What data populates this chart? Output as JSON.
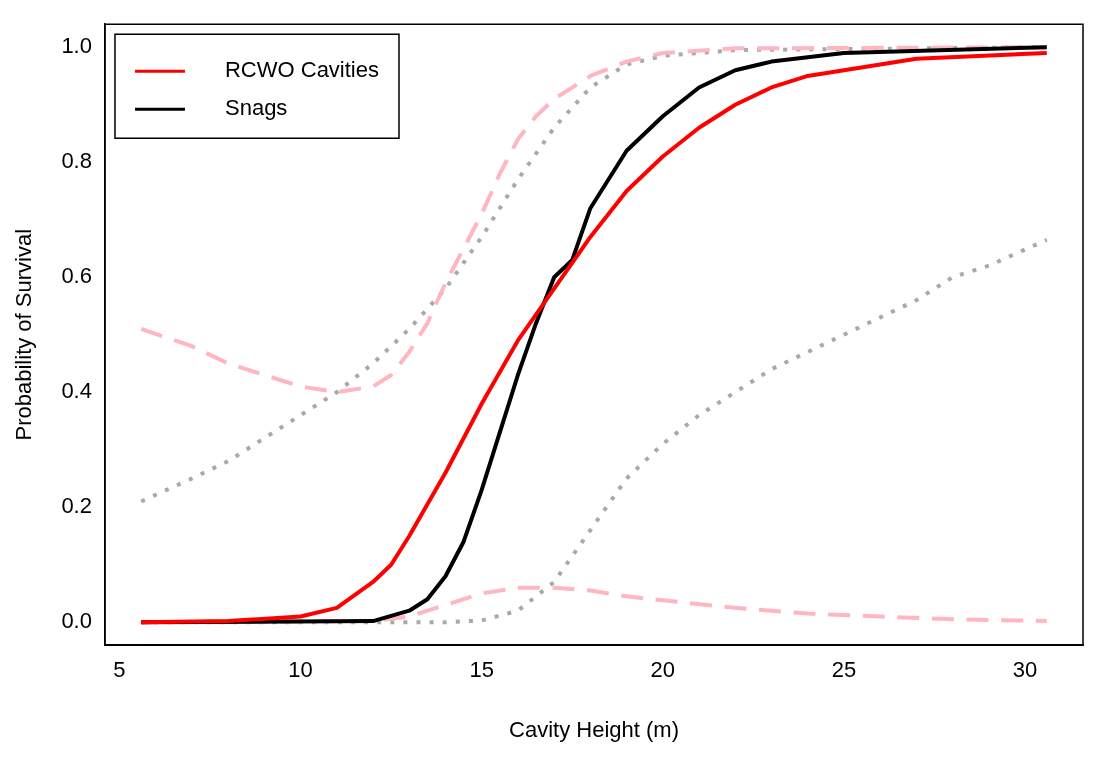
{
  "chart_data": {
    "type": "line",
    "xlabel": "Cavity Height (m)",
    "ylabel": "Probability of Survival",
    "xlim": [
      4.6,
      31.6
    ],
    "ylim": [
      -0.04,
      1.04
    ],
    "xticks": [
      5,
      10,
      15,
      20,
      25,
      30
    ],
    "yticks": [
      {
        "value": 0,
        "label": "0.0"
      },
      0.2,
      0.4,
      0.6,
      0.8,
      {
        "value": 1,
        "label": "1.0"
      }
    ],
    "grid": false,
    "legend": "top left",
    "marker": "none",
    "series": [
      {
        "name": "RCWO Cavities",
        "color": "#ff0000",
        "line_style": "solid",
        "x": [
          5.6,
          8,
          10,
          11,
          12,
          12.5,
          13,
          14,
          15,
          16,
          17,
          18,
          19,
          20,
          21,
          22,
          23,
          24,
          25,
          27,
          30.6
        ],
        "values": [
          0,
          0.002,
          0.01,
          0.025,
          0.07,
          0.1,
          0.15,
          0.26,
          0.38,
          0.49,
          0.58,
          0.67,
          0.75,
          0.81,
          0.86,
          0.9,
          0.93,
          0.95,
          0.96,
          0.98,
          0.99
        ]
      },
      {
        "name": "Snags",
        "color": "#000000",
        "line_style": "solid",
        "x": [
          5.6,
          12,
          13,
          13.5,
          14,
          14.5,
          15,
          15.5,
          16,
          16.5,
          17,
          17.5,
          18,
          19,
          20,
          21,
          22,
          23,
          25,
          30.6
        ],
        "values": [
          0,
          0.002,
          0.02,
          0.04,
          0.08,
          0.14,
          0.23,
          0.33,
          0.43,
          0.52,
          0.6,
          0.63,
          0.72,
          0.82,
          0.88,
          0.93,
          0.96,
          0.975,
          0.99,
          1
        ]
      },
      {
        "color": "#ffb6c1",
        "line_style": "dashed",
        "x": [
          5.6,
          7,
          8,
          9,
          10,
          11,
          12,
          12.5,
          13,
          13.5,
          14,
          14.5,
          15,
          15.5,
          16,
          16.5,
          17,
          18,
          19,
          20,
          22,
          30.6
        ],
        "values": [
          0.51,
          0.48,
          0.45,
          0.43,
          0.41,
          0.4,
          0.41,
          0.43,
          0.47,
          0.52,
          0.59,
          0.65,
          0.71,
          0.78,
          0.84,
          0.88,
          0.91,
          0.95,
          0.975,
          0.99,
          0.998,
          1
        ]
      },
      {
        "color": "#ffb6c1",
        "line_style": "dashed",
        "x": [
          5.6,
          12,
          13,
          14,
          15,
          16,
          17,
          18,
          19,
          20,
          22,
          24,
          26,
          28,
          30.6
        ],
        "values": [
          0,
          0.002,
          0.01,
          0.03,
          0.05,
          0.06,
          0.06,
          0.055,
          0.045,
          0.038,
          0.025,
          0.015,
          0.01,
          0.005,
          0.002
        ]
      },
      {
        "color": "#a9a9a9",
        "line_style": "dotted",
        "x": [
          5.6,
          7,
          8,
          9,
          10,
          11,
          12,
          13,
          14,
          15,
          16,
          17,
          18,
          19,
          20,
          22,
          30.6
        ],
        "values": [
          0.21,
          0.25,
          0.28,
          0.32,
          0.36,
          0.4,
          0.45,
          0.51,
          0.58,
          0.67,
          0.77,
          0.86,
          0.93,
          0.97,
          0.985,
          0.995,
          1
        ]
      },
      {
        "color": "#a9a9a9",
        "line_style": "dotted",
        "x": [
          5.6,
          14,
          15,
          16,
          17,
          18,
          19,
          20,
          21,
          22,
          23,
          24,
          25,
          26,
          27,
          28,
          29,
          30.6
        ],
        "values": [
          0,
          0,
          0.003,
          0.02,
          0.07,
          0.16,
          0.25,
          0.31,
          0.36,
          0.4,
          0.44,
          0.47,
          0.5,
          0.53,
          0.56,
          0.6,
          0.62,
          0.665
        ]
      }
    ]
  }
}
